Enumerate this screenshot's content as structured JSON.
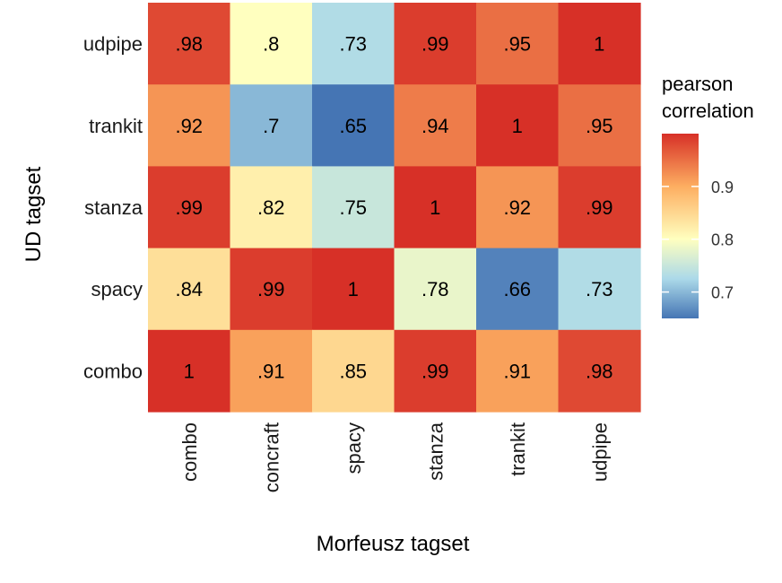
{
  "chart_data": {
    "type": "heatmap",
    "xlabel": "Morfeusz tagset",
    "ylabel": "UD tagset",
    "x_categories": [
      "combo",
      "concraft",
      "spacy",
      "stanza",
      "trankit",
      "udpipe"
    ],
    "y_categories": [
      "udpipe",
      "trankit",
      "stanza",
      "spacy",
      "combo"
    ],
    "values": [
      [
        0.98,
        0.8,
        0.73,
        0.99,
        0.95,
        1.0
      ],
      [
        0.92,
        0.7,
        0.65,
        0.94,
        1.0,
        0.95
      ],
      [
        0.99,
        0.82,
        0.75,
        1.0,
        0.92,
        0.99
      ],
      [
        0.84,
        0.99,
        1.0,
        0.78,
        0.66,
        0.73
      ],
      [
        1.0,
        0.91,
        0.85,
        0.99,
        0.91,
        0.98
      ]
    ],
    "cell_labels": [
      [
        ".98",
        ".8",
        ".73",
        ".99",
        ".95",
        "1"
      ],
      [
        ".92",
        ".7",
        ".65",
        ".94",
        "1",
        ".95"
      ],
      [
        ".99",
        ".82",
        ".75",
        "1",
        ".92",
        ".99"
      ],
      [
        ".84",
        ".99",
        "1",
        ".78",
        ".66",
        ".73"
      ],
      [
        "1",
        ".91",
        ".85",
        ".99",
        ".91",
        ".98"
      ]
    ],
    "legend": {
      "title_lines": [
        "pearson",
        "correlation"
      ],
      "ticks": [
        0.9,
        0.8,
        0.7
      ],
      "tick_labels": [
        "0.9",
        "0.8",
        "0.7"
      ],
      "range": [
        0.65,
        1.0
      ],
      "placement": "right"
    },
    "colors": {
      "low": "#4575b4",
      "mid_low": "#abd9e9",
      "mid": "#ffffbf",
      "mid_high": "#fdae61",
      "high": "#d73027",
      "scale_midpoint": 0.8
    }
  }
}
